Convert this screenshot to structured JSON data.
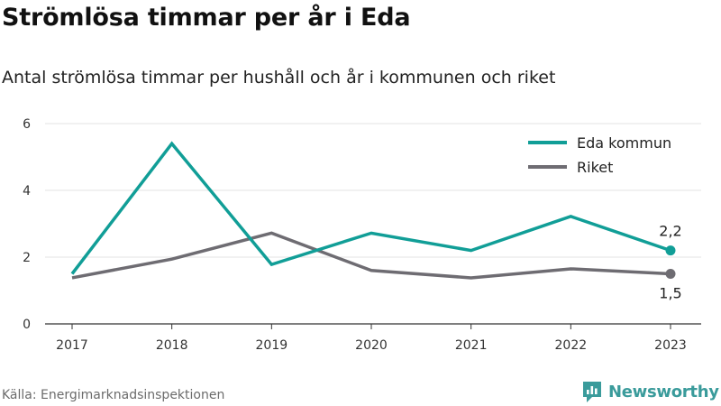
{
  "title": "Strömlösa timmar per år i Eda",
  "subtitle": "Antal strömlösa timmar per hushåll och år i kommunen och riket",
  "source": "Källa: Energimarknadsinspektionen",
  "brand": {
    "name": "Newsworthy",
    "logo_icon": "newsworthy-logo-icon",
    "color": "#3a9b9b"
  },
  "chart_data": {
    "type": "line",
    "x": [
      "2017",
      "2018",
      "2019",
      "2020",
      "2021",
      "2022",
      "2023"
    ],
    "ylim": [
      0,
      6
    ],
    "yticks": [
      0,
      2,
      4,
      6
    ],
    "grid": true,
    "legend": "top-right",
    "series": [
      {
        "name": "Eda kommun",
        "color": "#119e97",
        "values": [
          1.5,
          5.4,
          1.78,
          2.72,
          2.2,
          3.22,
          2.2
        ],
        "end_label": "2,2"
      },
      {
        "name": "Riket",
        "color": "#6e6c72",
        "values": [
          1.38,
          1.94,
          2.72,
          1.6,
          1.38,
          1.65,
          1.5
        ],
        "end_label": "1,5"
      }
    ]
  }
}
